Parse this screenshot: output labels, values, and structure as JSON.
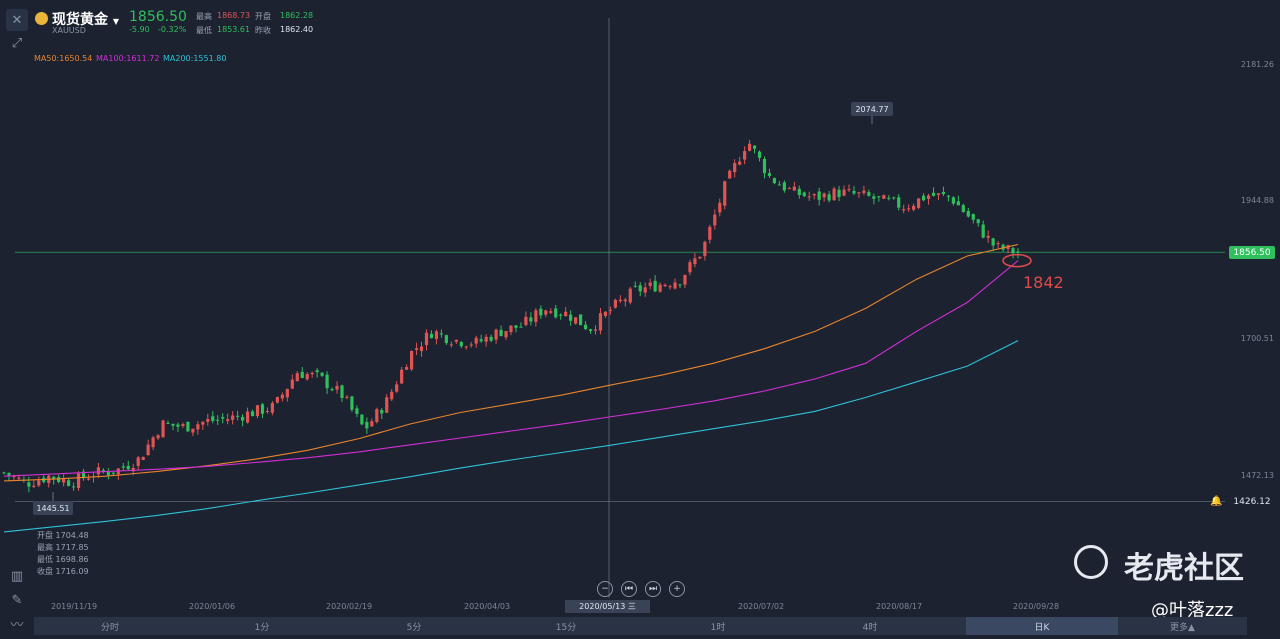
{
  "header": {
    "name": "现货黄金",
    "symbol": "XAUUSD",
    "last": "1856.50",
    "change": "-5.90",
    "change_pct": "-0.32%",
    "high_label": "最高",
    "high": "1868.73",
    "open_label": "开盘",
    "open": "1862.28",
    "low_label": "最低",
    "low": "1853.61",
    "prev_label": "昨收",
    "prev": "1862.40"
  },
  "ma_legend": {
    "ma50": "MA50:1650.54",
    "ma100": "MA100:1611.72",
    "ma200": "MA200:1551.80"
  },
  "colors": {
    "up": "#e05454",
    "down": "#2fbf5c",
    "ma50": "#e8842c",
    "ma100": "#d22fd6",
    "ma200": "#2fc2d6",
    "background": "#1c2230"
  },
  "tags": {
    "high_mark": "2074.77",
    "low_mark": "1445.51",
    "current": "1856.50",
    "alert": "1426.12",
    "crosshair_date": "2020/05/13 三",
    "annotation": "1842"
  },
  "ohlc_panel": {
    "open": "开盘 1704.48",
    "high": "最高 1717.85",
    "low": "最低 1698.86",
    "close": "收盘 1716.09"
  },
  "timeframes": [
    "分时",
    "1分",
    "5分",
    "15分",
    "1时",
    "4时",
    "日K",
    "更多▲"
  ],
  "active_timeframe": "日K",
  "watermark": "老虎社区",
  "handle": "@叶落zzz",
  "chart_data": {
    "type": "candlestick",
    "title": "",
    "xlabel": "",
    "ylabel": "",
    "x_ticks": [
      "2019/11/19",
      "2020/01/06",
      "2020/02/19",
      "2020/04/03",
      "2020/05/13 三",
      "2020/07/02",
      "2020/08/17",
      "2020/09/28"
    ],
    "y_ticks": [
      2181.26,
      1944.88,
      1700.51,
      1472.13
    ],
    "ylim": [
      1400,
      2220
    ],
    "grid": false,
    "series": [
      {
        "name": "MA50",
        "values": [
          1462,
          1465,
          1470,
          1478,
          1488,
          1500,
          1515,
          1535,
          1560,
          1580,
          1595,
          1610,
          1628,
          1645,
          1665,
          1690,
          1720,
          1760,
          1810,
          1850,
          1870
        ]
      },
      {
        "name": "MA100",
        "values": [
          1470,
          1474,
          1478,
          1482,
          1487,
          1494,
          1502,
          1512,
          1524,
          1536,
          1548,
          1560,
          1573,
          1586,
          1600,
          1617,
          1638,
          1665,
          1720,
          1770,
          1842
        ]
      },
      {
        "name": "MA200",
        "values": [
          1374,
          1383,
          1392,
          1402,
          1414,
          1428,
          1441,
          1455,
          1469,
          1484,
          1498,
          1511,
          1524,
          1538,
          1552,
          1566,
          1582,
          1606,
          1633,
          1660,
          1704
        ]
      }
    ],
    "close_path": [
      1476,
      1458,
      1470,
      1460,
      1475,
      1480,
      1500,
      1560,
      1555,
      1565,
      1570,
      1580,
      1590,
      1650,
      1640,
      1610,
      1550,
      1600,
      1680,
      1720,
      1705,
      1700,
      1720,
      1730,
      1760,
      1750,
      1725,
      1760,
      1790,
      1800,
      1810,
      1860,
      1970,
      2050,
      1985,
      1960,
      1950,
      1960,
      1955,
      1945,
      1935,
      1955,
      1952,
      1910,
      1865,
      1856
    ],
    "candle_count": 205
  }
}
